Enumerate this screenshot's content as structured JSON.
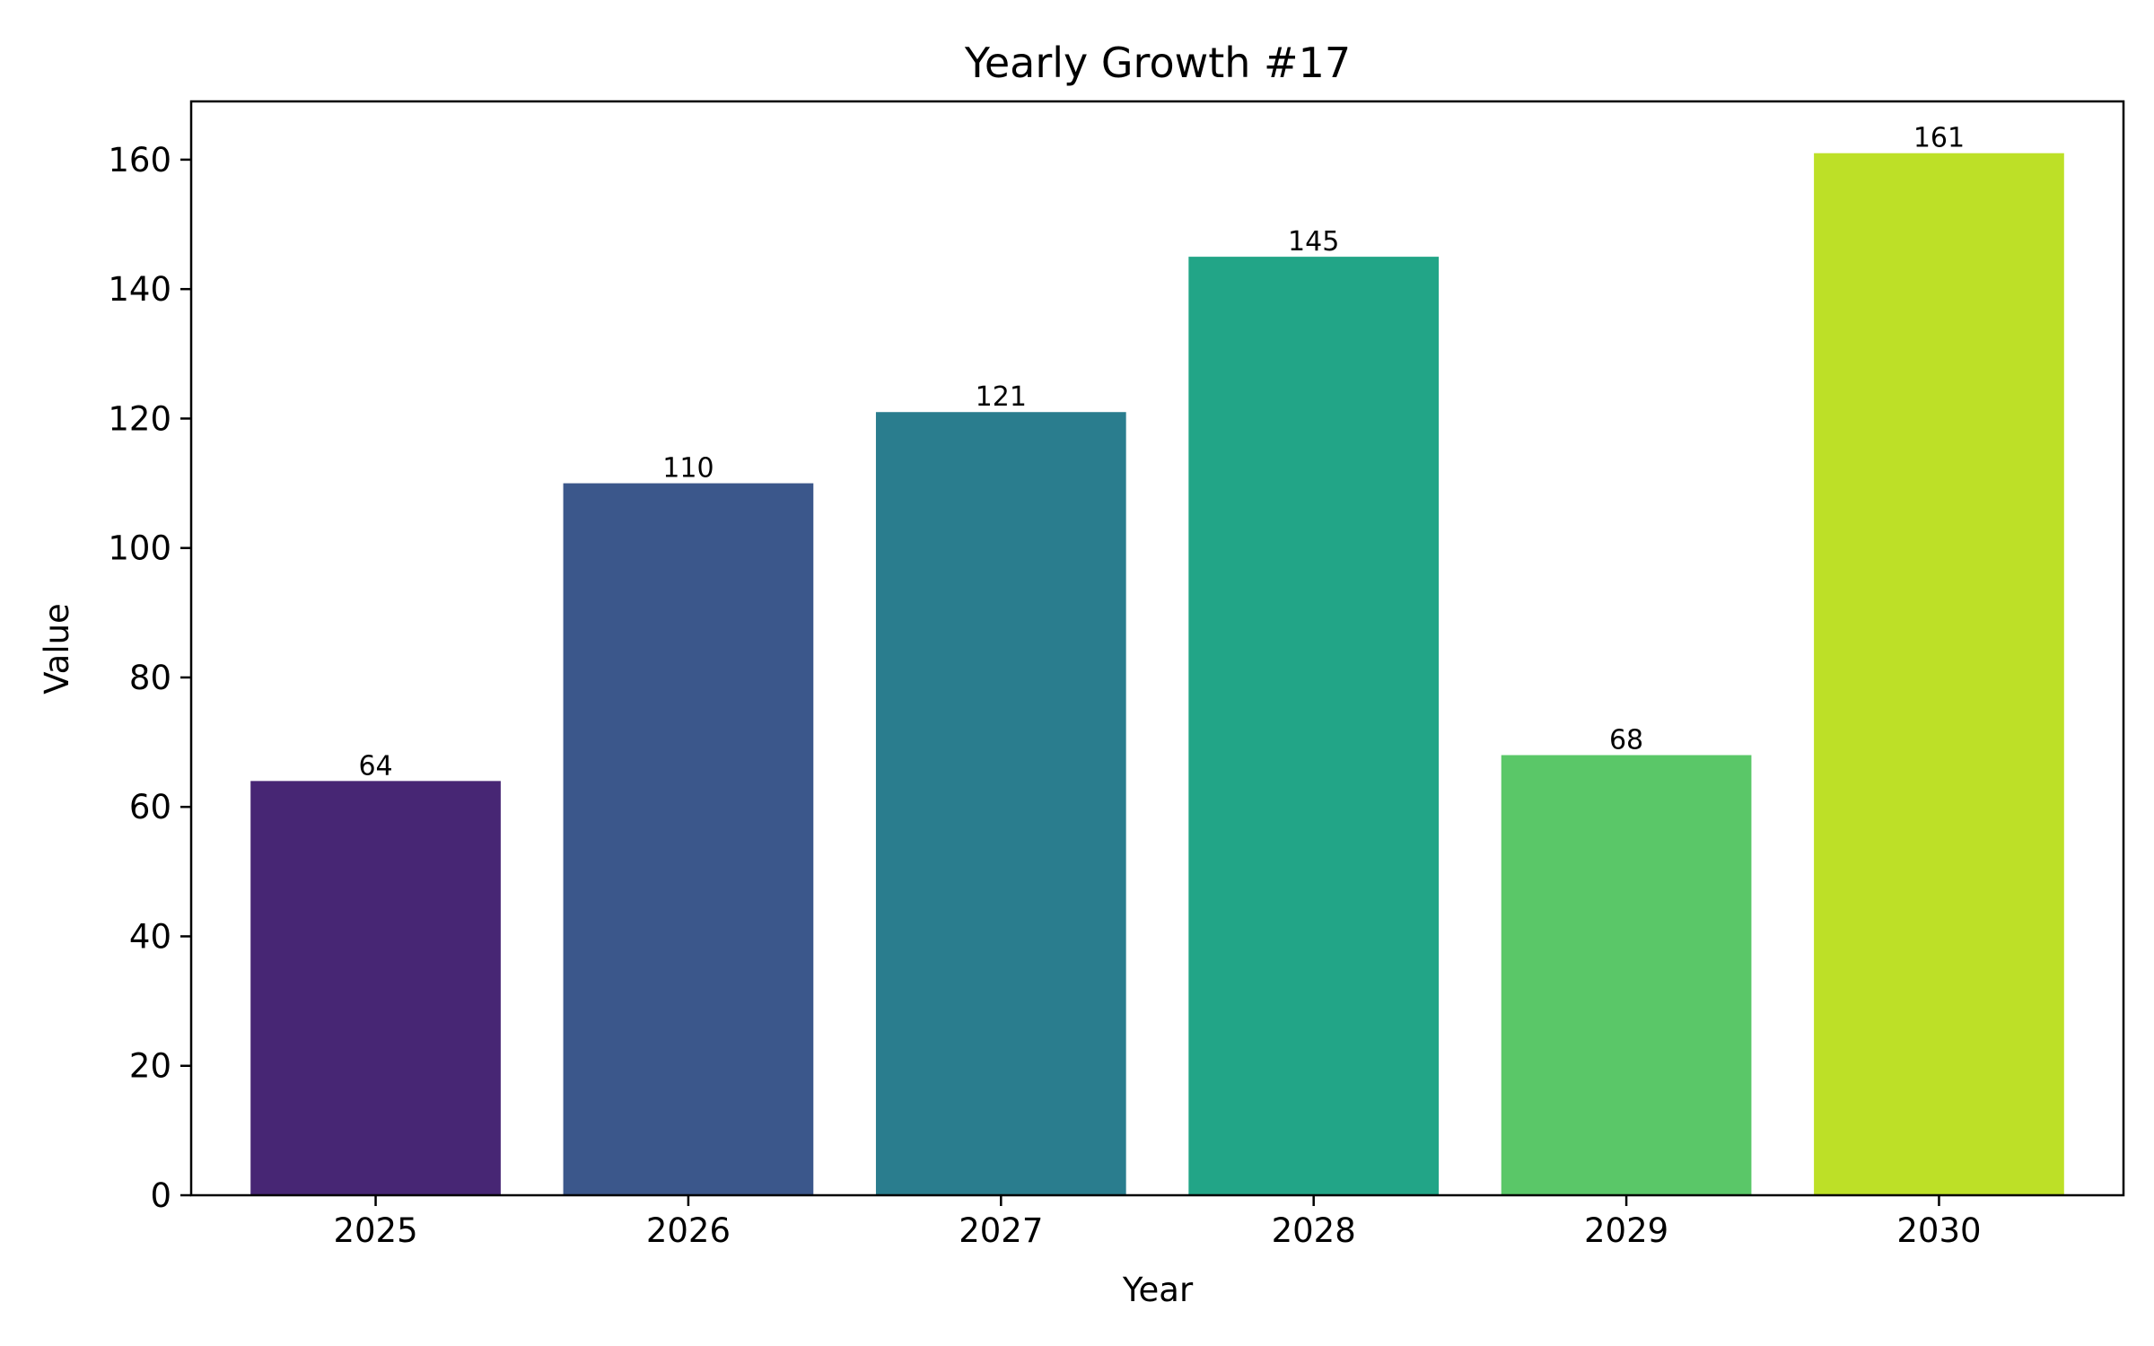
{
  "chart_data": {
    "type": "bar",
    "title": "Yearly Growth #17",
    "xlabel": "Year",
    "ylabel": "Value",
    "categories": [
      "2025",
      "2026",
      "2027",
      "2028",
      "2029",
      "2030"
    ],
    "values": [
      64,
      110,
      121,
      145,
      68,
      161
    ],
    "colors": [
      "#472674",
      "#3b578b",
      "#2a7d8e",
      "#22a587",
      "#5ac768",
      "#bde027"
    ],
    "ylim": [
      0,
      169
    ],
    "yticks": [
      0,
      20,
      40,
      60,
      80,
      100,
      120,
      140,
      160
    ],
    "grid": false,
    "legend": "none",
    "data_labels": true
  }
}
